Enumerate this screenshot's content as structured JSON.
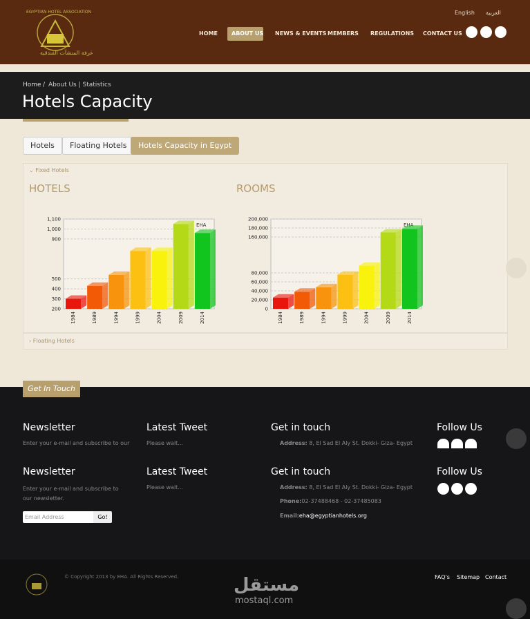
{
  "header": {
    "logo_text": "EGYPTIAN HOTEL ASSOCIATION",
    "logo_arabic": "غرفة المنشآت الفندقية",
    "languages": [
      "English",
      "العربية"
    ],
    "nav": [
      "HOME",
      "ABOUT US",
      "NEWS & EVENTS",
      "MEMBERS",
      "REGULATIONS",
      "CONTACT US"
    ]
  },
  "breadcrumb": [
    "Home",
    "About Us | Statistics"
  ],
  "page_title": "Hotels Capacity",
  "tabs": [
    "Hotels",
    "Floating Hotels",
    "Hotels Capacity in Egypt"
  ],
  "accordion": [
    "Fixed Hotels",
    "Floating Hotels"
  ],
  "charts": [
    {
      "type": "bar",
      "title": "HOTELS",
      "annotation": "EHA",
      "categories": [
        "1984",
        "1989",
        "1994",
        "1999",
        "2004",
        "2009",
        "2014"
      ],
      "values": [
        300,
        430,
        540,
        780,
        780,
        1050,
        960
      ],
      "colors": [
        "#e8160c",
        "#f25a06",
        "#f7930d",
        "#fcc012",
        "#f8f20c",
        "#b4d916",
        "#11c41e"
      ],
      "ylim": [
        200,
        1100
      ],
      "yticks": [
        200,
        300,
        400,
        500,
        900,
        {
          "value": 1000,
          "label": "1,000"
        },
        {
          "value": 1100,
          "label": "1,100"
        }
      ],
      "grid": true
    },
    {
      "type": "bar",
      "title": "ROOMS",
      "annotation": "EHA",
      "categories": [
        "1984",
        "1989",
        "1994",
        "1999",
        "2004",
        "2009",
        "2014"
      ],
      "values": [
        25000,
        38000,
        48000,
        76000,
        96000,
        170000,
        178000
      ],
      "colors": [
        "#e8160c",
        "#f25a06",
        "#f7930d",
        "#fcc012",
        "#f8f20c",
        "#b4d916",
        "#11c41e"
      ],
      "ylim": [
        0,
        200000
      ],
      "yticks": [
        0,
        {
          "value": 20000,
          "label": "20,000"
        },
        {
          "value": 40000,
          "label": "40,000"
        },
        {
          "value": 60000,
          "label": "60,000"
        },
        {
          "value": 80000,
          "label": "80,000"
        },
        {
          "value": 160000,
          "label": "160,000"
        },
        {
          "value": 180000,
          "label": "180,000"
        },
        {
          "value": 200000,
          "label": "200,000"
        }
      ],
      "grid": true
    }
  ],
  "footer": {
    "get_in_touch_tab": "Get In Touch",
    "newsletter_title": "Newsletter",
    "newsletter_text_short": "Enter your e-mail and subscribe to our",
    "newsletter_text": "Enter your e-mail and subscribe to our newsletter.",
    "email_placeholder": "Email Address",
    "go": "Go!",
    "tweet_title": "Latest Tweet",
    "tweet_text": "Please wait...",
    "contact_title": "Get in touch",
    "address_label": "Address:",
    "address": "8, El Sad El Aly St. Dokki- Giza- Egypt",
    "phone_label": "Phone:",
    "phone": "02-37488468 - 02-37485083",
    "email_label": "Email:",
    "email": "eha@egyptianhotels.org",
    "follow_title": "Follow Us",
    "copyright": "© Copyright 2013 by EHA. All Rights Reserved.",
    "links": [
      "FAQ's",
      "Sitemap",
      "Contact"
    ]
  },
  "watermark": {
    "arabic": "مستقل",
    "latin": "mostaql.com"
  }
}
